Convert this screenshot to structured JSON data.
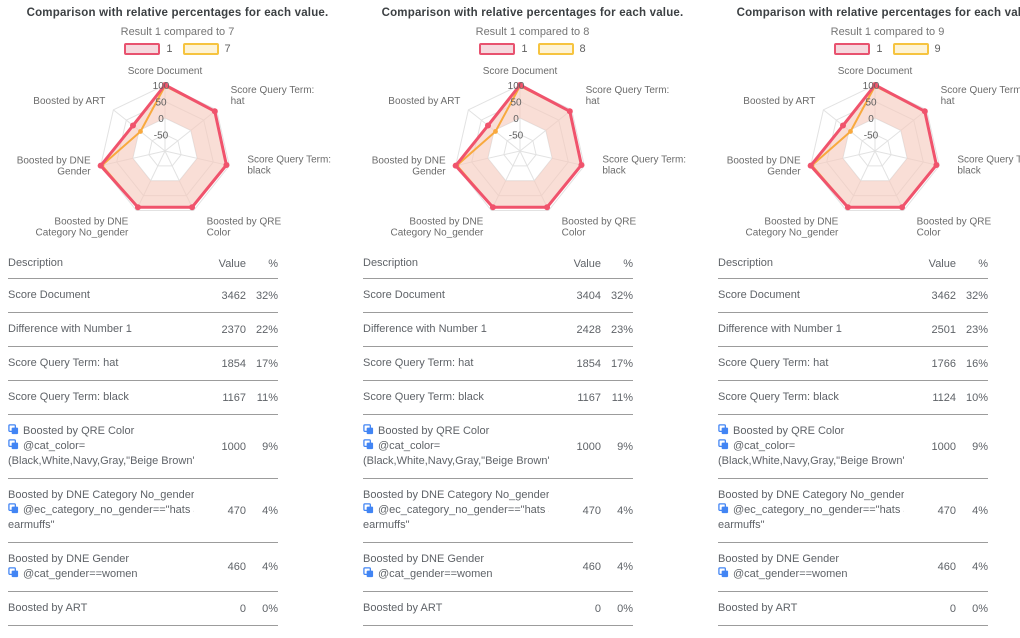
{
  "colors": {
    "series1_stroke": "#f0536c",
    "series1_fill": "#f6c9bd",
    "series1_legend_fill": "#f5d9de",
    "series2_stroke": "#f8a93e",
    "series2_legend_fill": "#fdf3d6",
    "grid": "#e2e2e2",
    "tick_text": "#616161",
    "axis_label_text": "#6b6b6b",
    "table_text": "#5f6368",
    "divider": "#9c9c9c",
    "icon_blue": "#4285f4"
  },
  "columns": [
    {
      "title": "Comparison with relative percentages for each value.",
      "subtitle": "Result 1 compared to 7",
      "legend": [
        {
          "label": "1"
        },
        {
          "label": "7"
        }
      ],
      "table": {
        "headers": {
          "description": "Description",
          "value": "Value",
          "pct": "%"
        },
        "rows": [
          {
            "lines": [
              {
                "icon": false,
                "text": "Score Document"
              }
            ],
            "value": "3462",
            "pct": "32%"
          },
          {
            "lines": [
              {
                "icon": false,
                "text": "Difference with Number 1"
              }
            ],
            "value": "2370",
            "pct": "22%"
          },
          {
            "lines": [
              {
                "icon": false,
                "text": "Score Query Term: hat"
              }
            ],
            "value": "1854",
            "pct": "17%"
          },
          {
            "lines": [
              {
                "icon": false,
                "text": "Score Query Term: black"
              }
            ],
            "value": "1167",
            "pct": "11%"
          },
          {
            "lines": [
              {
                "icon": true,
                "text": "Boosted by QRE Color"
              },
              {
                "icon": true,
                "text": "@cat_color="
              },
              {
                "icon": false,
                "text": "(Black,White,Navy,Gray,\"Beige Brown\",Re..."
              }
            ],
            "value": "1000",
            "pct": "9%"
          },
          {
            "lines": [
              {
                "icon": false,
                "text": "Boosted by DNE Category No_gender"
              },
              {
                "icon": true,
                "text": "@ec_category_no_gender==\"hats and"
              },
              {
                "icon": false,
                "text": "earmuffs\""
              }
            ],
            "value": "470",
            "pct": "4%"
          },
          {
            "lines": [
              {
                "icon": false,
                "text": "Boosted by DNE Gender"
              },
              {
                "icon": true,
                "text": "@cat_gender==women"
              }
            ],
            "value": "460",
            "pct": "4%"
          },
          {
            "lines": [
              {
                "icon": false,
                "text": "Boosted by ART"
              }
            ],
            "value": "0",
            "pct": "0%"
          }
        ]
      }
    },
    {
      "title": "Comparison with relative percentages for each value.",
      "subtitle": "Result 1 compared to 8",
      "legend": [
        {
          "label": "1"
        },
        {
          "label": "8"
        }
      ],
      "table": {
        "headers": {
          "description": "Description",
          "value": "Value",
          "pct": "%"
        },
        "rows": [
          {
            "lines": [
              {
                "icon": false,
                "text": "Score Document"
              }
            ],
            "value": "3404",
            "pct": "32%"
          },
          {
            "lines": [
              {
                "icon": false,
                "text": "Difference with Number 1"
              }
            ],
            "value": "2428",
            "pct": "23%"
          },
          {
            "lines": [
              {
                "icon": false,
                "text": "Score Query Term: hat"
              }
            ],
            "value": "1854",
            "pct": "17%"
          },
          {
            "lines": [
              {
                "icon": false,
                "text": "Score Query Term: black"
              }
            ],
            "value": "1167",
            "pct": "11%"
          },
          {
            "lines": [
              {
                "icon": true,
                "text": "Boosted by QRE Color"
              },
              {
                "icon": true,
                "text": "@cat_color="
              },
              {
                "icon": false,
                "text": "(Black,White,Navy,Gray,\"Beige Brown\",Re..."
              }
            ],
            "value": "1000",
            "pct": "9%"
          },
          {
            "lines": [
              {
                "icon": false,
                "text": "Boosted by DNE Category No_gender"
              },
              {
                "icon": true,
                "text": "@ec_category_no_gender==\"hats and"
              },
              {
                "icon": false,
                "text": "earmuffs\""
              }
            ],
            "value": "470",
            "pct": "4%"
          },
          {
            "lines": [
              {
                "icon": false,
                "text": "Boosted by DNE Gender"
              },
              {
                "icon": true,
                "text": "@cat_gender==women"
              }
            ],
            "value": "460",
            "pct": "4%"
          },
          {
            "lines": [
              {
                "icon": false,
                "text": "Boosted by ART"
              }
            ],
            "value": "0",
            "pct": "0%"
          }
        ]
      }
    },
    {
      "title": "Comparison with relative percentages for each value.",
      "subtitle": "Result 1 compared to 9",
      "legend": [
        {
          "label": "1"
        },
        {
          "label": "9"
        }
      ],
      "table": {
        "headers": {
          "description": "Description",
          "value": "Value",
          "pct": "%"
        },
        "rows": [
          {
            "lines": [
              {
                "icon": false,
                "text": "Score Document"
              }
            ],
            "value": "3462",
            "pct": "32%"
          },
          {
            "lines": [
              {
                "icon": false,
                "text": "Difference with Number 1"
              }
            ],
            "value": "2501",
            "pct": "23%"
          },
          {
            "lines": [
              {
                "icon": false,
                "text": "Score Query Term: hat"
              }
            ],
            "value": "1766",
            "pct": "16%"
          },
          {
            "lines": [
              {
                "icon": false,
                "text": "Score Query Term: black"
              }
            ],
            "value": "1124",
            "pct": "10%"
          },
          {
            "lines": [
              {
                "icon": true,
                "text": "Boosted by QRE Color"
              },
              {
                "icon": true,
                "text": "@cat_color="
              },
              {
                "icon": false,
                "text": "(Black,White,Navy,Gray,\"Beige Brown\",Re..."
              }
            ],
            "value": "1000",
            "pct": "9%"
          },
          {
            "lines": [
              {
                "icon": false,
                "text": "Boosted by DNE Category No_gender"
              },
              {
                "icon": true,
                "text": "@ec_category_no_gender==\"hats and"
              },
              {
                "icon": false,
                "text": "earmuffs\""
              }
            ],
            "value": "470",
            "pct": "4%"
          },
          {
            "lines": [
              {
                "icon": false,
                "text": "Boosted by DNE Gender"
              },
              {
                "icon": true,
                "text": "@cat_gender==women"
              }
            ],
            "value": "460",
            "pct": "4%"
          },
          {
            "lines": [
              {
                "icon": false,
                "text": "Boosted by ART"
              }
            ],
            "value": "0",
            "pct": "0%"
          }
        ]
      }
    }
  ],
  "chart_data": [
    {
      "type": "radar",
      "title": "Result 1 compared to 7",
      "axes": [
        "Score Document",
        "Score Query Term: hat",
        "Score Query Term: black",
        "Boosted by QRE Color",
        "Boosted by DNE Category No_gender",
        "Boosted by DNE Gender",
        "Boosted by ART"
      ],
      "axis_label_lines": [
        [
          "Score Document"
        ],
        [
          "Score Query Term:",
          "hat"
        ],
        [
          "Score Query Term:",
          "black"
        ],
        [
          "Boosted by QRE",
          "Color"
        ],
        [
          "Boosted by DNE",
          "Category No_gender"
        ],
        [
          "Boosted by DNE",
          "Gender"
        ],
        [
          "Boosted by ART"
        ]
      ],
      "scale": {
        "min": -100,
        "max": 100,
        "tick_labels": [
          100,
          50,
          0,
          -50
        ],
        "fill_baseline": 0
      },
      "series": [
        {
          "name": "1",
          "values": [
            100,
            93,
            91,
            89,
            89,
            100,
            24
          ]
        },
        {
          "name": "7",
          "values": [
            97,
            93,
            91,
            89,
            89,
            96,
            -5
          ]
        }
      ]
    },
    {
      "type": "radar",
      "title": "Result 1 compared to 8",
      "axes": [
        "Score Document",
        "Score Query Term: hat",
        "Score Query Term: black",
        "Boosted by QRE Color",
        "Boosted by DNE Category No_gender",
        "Boosted by DNE Gender",
        "Boosted by ART"
      ],
      "axis_label_lines": [
        [
          "Score Document"
        ],
        [
          "Score Query Term:",
          "hat"
        ],
        [
          "Score Query Term:",
          "black"
        ],
        [
          "Boosted by QRE",
          "Color"
        ],
        [
          "Boosted by DNE",
          "Category No_gender"
        ],
        [
          "Boosted by DNE",
          "Gender"
        ],
        [
          "Boosted by ART"
        ]
      ],
      "scale": {
        "min": -100,
        "max": 100,
        "tick_labels": [
          100,
          50,
          0,
          -50
        ],
        "fill_baseline": 0
      },
      "series": [
        {
          "name": "1",
          "values": [
            100,
            93,
            91,
            89,
            89,
            100,
            24
          ]
        },
        {
          "name": "8",
          "values": [
            97,
            93,
            91,
            89,
            89,
            96,
            -5
          ]
        }
      ]
    },
    {
      "type": "radar",
      "title": "Result 1 compared to 9",
      "axes": [
        "Score Document",
        "Score Query Term: hat",
        "Score Query Term: black",
        "Boosted by QRE Color",
        "Boosted by DNE Category No_gender",
        "Boosted by DNE Gender",
        "Boosted by ART"
      ],
      "axis_label_lines": [
        [
          "Score Document"
        ],
        [
          "Score Query Term:",
          "hat"
        ],
        [
          "Score Query Term:",
          "black"
        ],
        [
          "Boosted by QRE",
          "Color"
        ],
        [
          "Boosted by DNE",
          "Category No_gender"
        ],
        [
          "Boosted by DNE",
          "Gender"
        ],
        [
          "Boosted by ART"
        ]
      ],
      "scale": {
        "min": -100,
        "max": 100,
        "tick_labels": [
          100,
          50,
          0,
          -50
        ],
        "fill_baseline": 0
      },
      "series": [
        {
          "name": "1",
          "values": [
            100,
            93,
            91,
            89,
            89,
            100,
            24
          ]
        },
        {
          "name": "9",
          "values": [
            97,
            93,
            91,
            89,
            89,
            96,
            -5
          ]
        }
      ]
    }
  ]
}
